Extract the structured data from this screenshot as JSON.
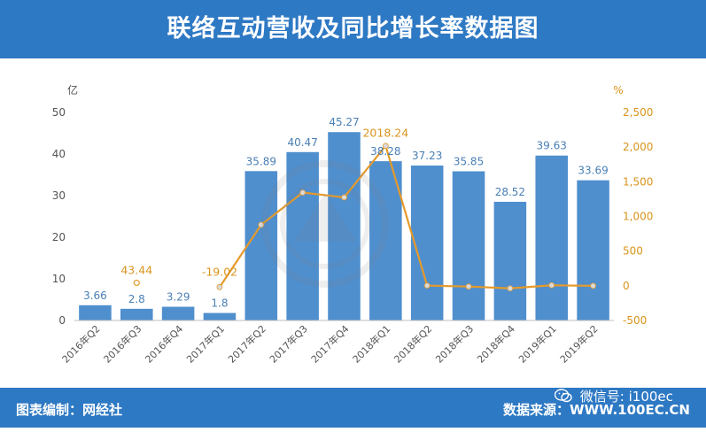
{
  "header": {
    "title": "联络互动营收及同比增长率数据图"
  },
  "footer": {
    "made_by": "图表编制：网经社",
    "source": "数据来源：WWW.100EC.CN",
    "wechat": "微信号: i100ec"
  },
  "colors": {
    "header": "#2e79c4",
    "bar": "#4f8fce",
    "line": "#e59a2b",
    "line_label": "#d9941c",
    "bar_label": "#4a7fb5"
  },
  "chart_data": {
    "type": "bar",
    "categories": [
      "2016年Q2",
      "2016年Q3",
      "2016年Q4",
      "2017年Q1",
      "2017年Q2",
      "2017年Q3",
      "2017年Q4",
      "2018年Q1",
      "2018年Q2",
      "2018年Q3",
      "2018年Q4",
      "2019年Q1",
      "2019年Q2"
    ],
    "series": [
      {
        "type": "bar",
        "axis": "left",
        "values": [
          3.66,
          2.8,
          3.29,
          1.8,
          35.89,
          40.47,
          45.27,
          38.28,
          37.23,
          35.85,
          28.52,
          39.63,
          33.69
        ],
        "labels": [
          "3.66",
          "2.8",
          "3.29",
          "1.8",
          "35.89",
          "40.47",
          "45.27",
          "38.28",
          "37.23",
          "35.85",
          "28.52",
          "39.63",
          "33.69"
        ]
      },
      {
        "type": "line",
        "axis": "right",
        "values": [
          null,
          43.44,
          null,
          -19.02,
          880,
          1345,
          1275,
          2018.24,
          3,
          -11,
          -37,
          7,
          -1
        ],
        "labels": [
          "",
          "43.44",
          "",
          "-19.02",
          "",
          "",
          "",
          "2018.24",
          "",
          "",
          "",
          "",
          ""
        ]
      }
    ],
    "y_left": {
      "unit": "亿",
      "range": [
        0,
        50
      ],
      "ticks": [
        "0",
        "10",
        "20",
        "30",
        "40",
        "50"
      ]
    },
    "y_right": {
      "unit": "%",
      "range": [
        -500,
        2500
      ],
      "ticks": [
        "-500",
        "0",
        "500",
        "1,000",
        "1,500",
        "2,000",
        "2,500"
      ]
    },
    "grid": false,
    "legend": "none"
  }
}
